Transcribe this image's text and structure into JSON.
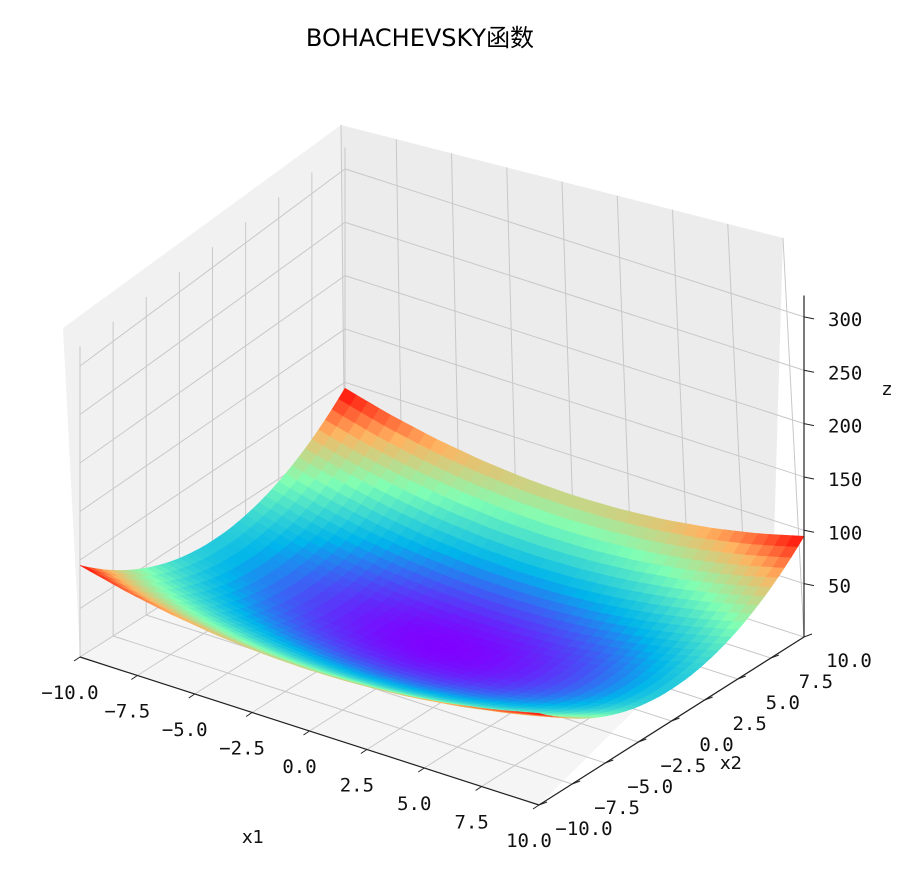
{
  "chart_data": {
    "type": "surface3d",
    "title": "BOHACHEVSKY函数",
    "function": "x1^2 + 2*x2^2 - 0.3*cos(3*pi*x1) - 0.4*cos(4*pi*x2) + 0.7",
    "xlabel": "x1",
    "ylabel": "x2",
    "zlabel": "z",
    "x_range": [
      -10,
      10
    ],
    "y_range": [
      -10,
      10
    ],
    "z_ticks_range": [
      50,
      300
    ],
    "x_ticks": [
      "−10.0",
      "−7.5",
      "−5.0",
      "−2.5",
      "0.0",
      "2.5",
      "5.0",
      "7.5",
      "10.0"
    ],
    "y_ticks": [
      "−10.0",
      "−7.5",
      "−5.0",
      "−2.5",
      "0.0",
      "2.5",
      "5.0",
      "7.5",
      "10.0"
    ],
    "z_ticks": [
      "50",
      "100",
      "150",
      "200",
      "250",
      "300"
    ],
    "colormap": "rainbow",
    "colormap_colors": [
      "#8000ff",
      "#00b5eb",
      "#80ffb4",
      "#ffb360",
      "#ff0000"
    ],
    "grid": true,
    "grid_color": "#c8c8c8",
    "pane_color": "#f2f2f2"
  }
}
